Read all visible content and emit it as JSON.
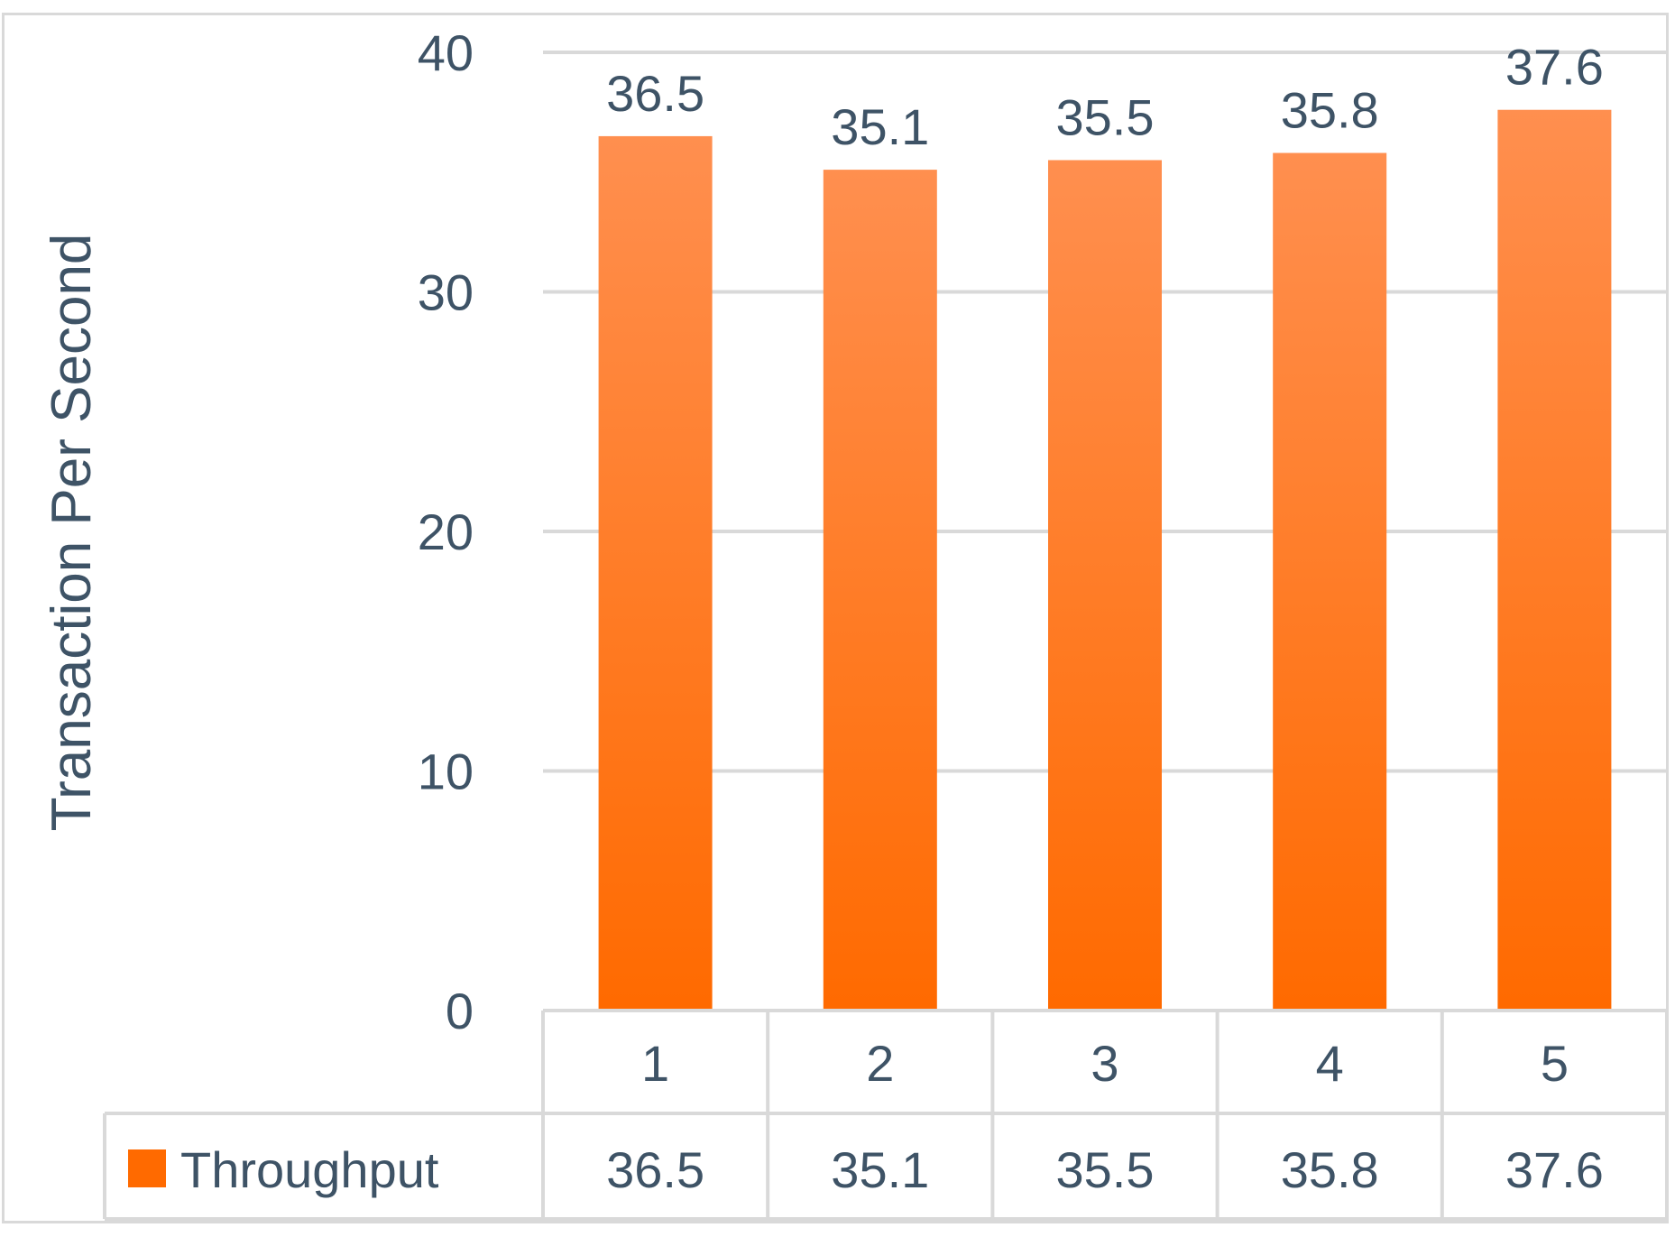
{
  "chart_data": {
    "type": "bar",
    "categories": [
      "1",
      "2",
      "3",
      "4",
      "5"
    ],
    "series": [
      {
        "name": "Throughput",
        "values": [
          36.5,
          35.1,
          35.5,
          35.8,
          37.6
        ]
      }
    ],
    "ylabel": "Transaction Per Second",
    "ylim": [
      0,
      40
    ],
    "yticks": [
      "0",
      "10",
      "20",
      "30",
      "40"
    ],
    "grid": true,
    "legend": "data-table",
    "data_table": {
      "header": [
        "1",
        "2",
        "3",
        "4",
        "5"
      ],
      "row_label": "Throughput",
      "row_values": [
        "36.5",
        "35.1",
        "35.5",
        "35.8",
        "37.6"
      ]
    },
    "colors": {
      "bar_top": "#ff8f4f",
      "bar_bottom": "#ff6a00",
      "text": "#3e5366",
      "grid": "#d9d9d9"
    }
  }
}
